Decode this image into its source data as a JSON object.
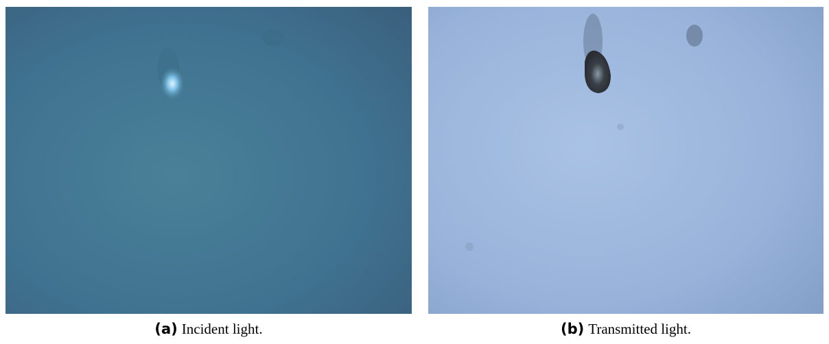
{
  "figure": {
    "panels": [
      {
        "label": "(a)",
        "caption": "Incident light."
      },
      {
        "label": "(b)",
        "caption": "Transmitted light."
      }
    ]
  }
}
